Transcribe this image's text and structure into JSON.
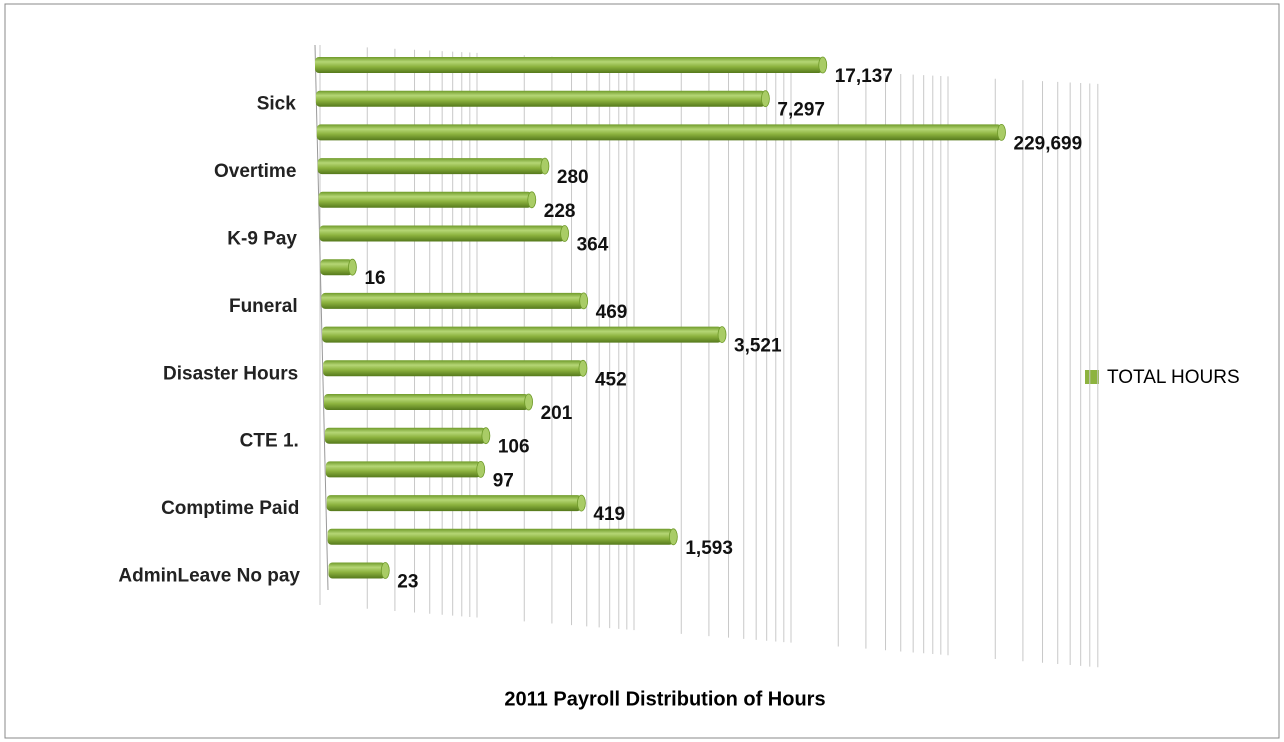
{
  "chart_data": {
    "type": "bar",
    "orientation": "horizontal",
    "title": "2011 Payroll  Distribution of Hours",
    "categories": [
      null,
      "Sick",
      null,
      "Overtime",
      null,
      "K-9 Pay",
      null,
      "Funeral",
      null,
      "Disaster Hours",
      null,
      "CTE 1.",
      null,
      "Comptime   Paid",
      null,
      "AdminLeave No pay"
    ],
    "series": [
      {
        "name": "TOTAL HOURS",
        "color": "#8db33f",
        "values": [
          17137,
          7297,
          229699,
          280,
          228,
          364,
          16,
          469,
          3521,
          452,
          201,
          106,
          97,
          419,
          1593,
          23
        ],
        "value_labels": [
          "17,137",
          "7,297",
          "229,699",
          "280",
          "228",
          "364",
          "16",
          "469",
          "3,521",
          "452",
          "201",
          "106",
          "97",
          "419",
          "1,593",
          "23"
        ]
      }
    ],
    "xlim": [
      10,
      1000000
    ],
    "log_scale": true,
    "grid": true,
    "legend": "right"
  }
}
